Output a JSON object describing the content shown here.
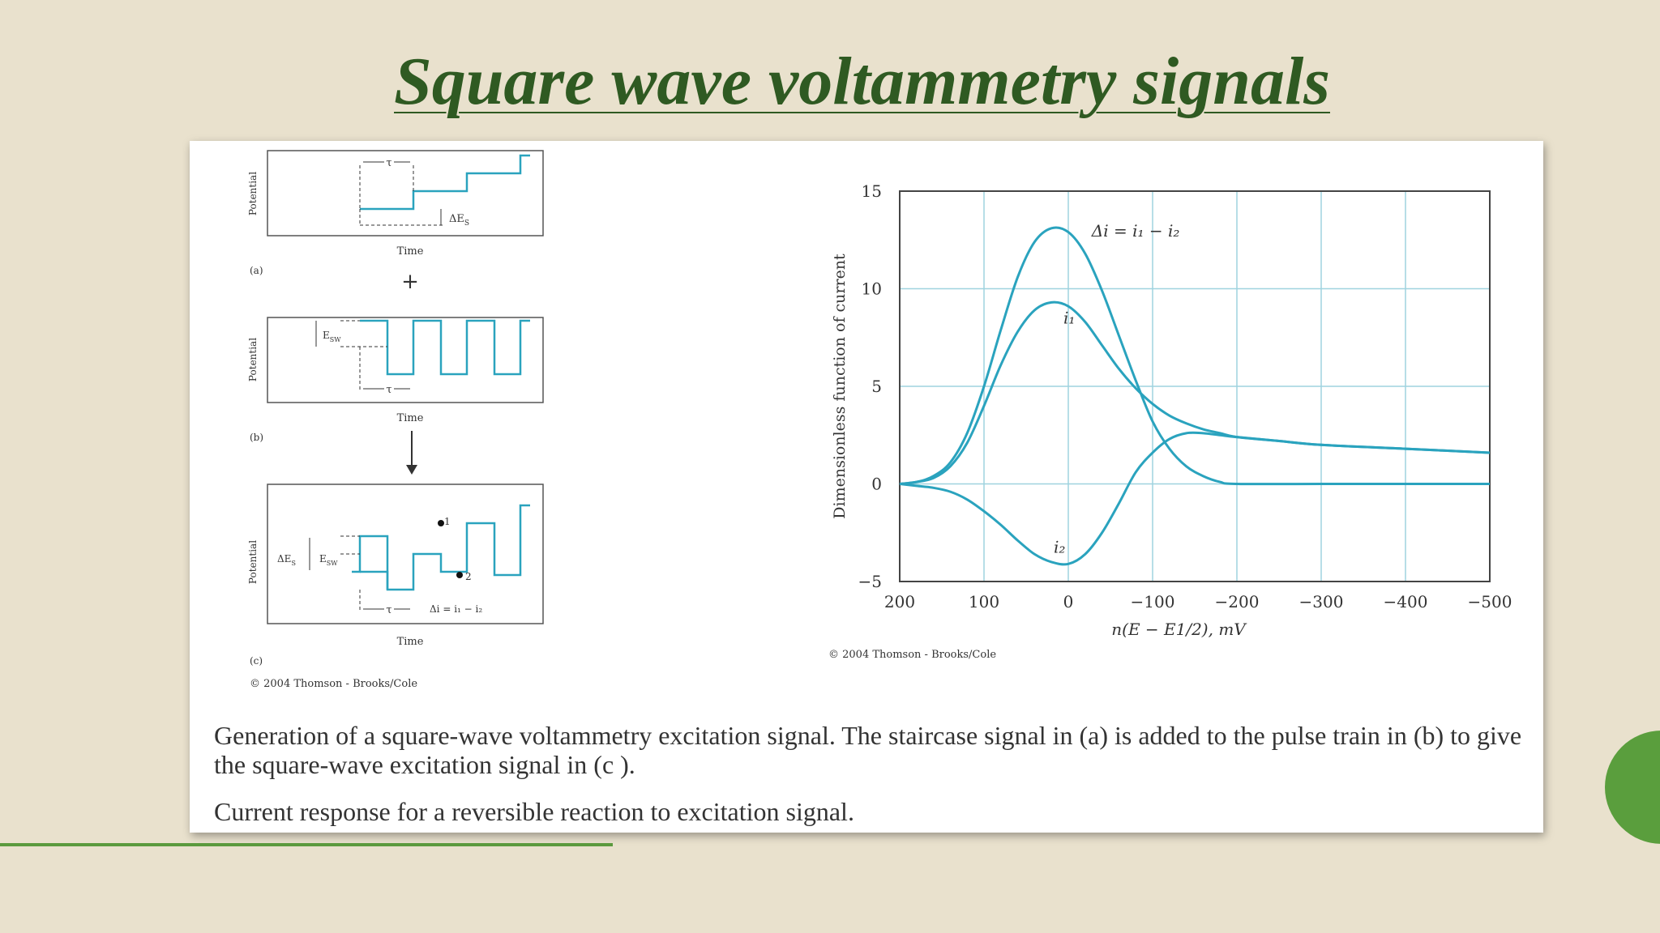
{
  "slide": {
    "title": "Square wave voltammetry signals",
    "caption1": "Generation of a square-wave voltammetry excitation signal. The staircase signal in (a) is added to the pulse train in (b) to give the square-wave excitation signal in (c ).",
    "caption2": "Current response for a reversible reaction to excitation signal."
  },
  "diagram": {
    "ylabel": "Potential",
    "xlabel": "Time",
    "label_a": "(a)",
    "label_b": "(b)",
    "label_c": "(c)",
    "plus": "+",
    "tau": "τ",
    "delta_es": "ΔE",
    "delta_es_sub": "S",
    "esw": "E",
    "esw_sub": "SW",
    "point1": "1",
    "point2": "2",
    "delta_i_eq": "Δi = i₁ − i₂",
    "copyright": "© 2004 Thomson - Brooks/Cole"
  },
  "chart_data": {
    "type": "line",
    "xlabel": "n(E − E1/2), mV",
    "ylabel": "Dimensionless function of current",
    "xlim": [
      200,
      -500
    ],
    "ylim": [
      -5,
      15
    ],
    "xticks": [
      200,
      100,
      0,
      -100,
      -200,
      -300,
      -400,
      -500
    ],
    "xtick_labels": [
      "200",
      "100",
      "0",
      "−100",
      "−200",
      "−300",
      "−400",
      "−500"
    ],
    "yticks": [
      15,
      10,
      5,
      0,
      -5
    ],
    "ytick_labels": [
      "15",
      "10",
      "5",
      "0",
      "−5"
    ],
    "grid": true,
    "color": "#2aa3be",
    "copyright": "© 2004 Thomson - Brooks/Cole",
    "series": [
      {
        "name": "Δi = i1 − i2",
        "label": "Δi = i₁ − i₂",
        "x": [
          200,
          180,
          160,
          140,
          120,
          100,
          80,
          60,
          40,
          20,
          0,
          -20,
          -40,
          -60,
          -80,
          -100,
          -120,
          -140,
          -160,
          -180,
          -200,
          -300,
          -400,
          -500
        ],
        "y": [
          0.0,
          0.1,
          0.4,
          1.1,
          2.6,
          5.0,
          7.9,
          10.6,
          12.4,
          13.1,
          12.9,
          11.8,
          9.9,
          7.6,
          5.3,
          3.2,
          1.8,
          0.9,
          0.4,
          0.1,
          0.0,
          0.0,
          0.0,
          0.0
        ]
      },
      {
        "name": "i1",
        "label": "i₁",
        "x": [
          200,
          180,
          160,
          140,
          120,
          100,
          80,
          60,
          40,
          20,
          0,
          -20,
          -40,
          -60,
          -80,
          -100,
          -120,
          -140,
          -160,
          -180,
          -200,
          -250,
          -300,
          -400,
          -500
        ],
        "y": [
          0.0,
          0.1,
          0.3,
          0.9,
          2.1,
          4.0,
          6.1,
          7.8,
          8.9,
          9.3,
          9.1,
          8.3,
          7.1,
          5.9,
          4.9,
          4.1,
          3.5,
          3.1,
          2.8,
          2.6,
          2.4,
          2.2,
          2.0,
          1.8,
          1.6
        ]
      },
      {
        "name": "i2",
        "label": "i₂",
        "x": [
          200,
          180,
          160,
          140,
          120,
          100,
          80,
          60,
          40,
          20,
          0,
          -20,
          -40,
          -60,
          -80,
          -100,
          -120,
          -140,
          -160,
          -180,
          -200,
          -250,
          -300,
          -400,
          -500
        ],
        "y": [
          0.0,
          -0.1,
          -0.2,
          -0.4,
          -0.8,
          -1.4,
          -2.1,
          -2.9,
          -3.6,
          -4.0,
          -4.1,
          -3.6,
          -2.5,
          -1.0,
          0.6,
          1.6,
          2.3,
          2.6,
          2.6,
          2.5,
          2.4,
          2.2,
          2.0,
          1.8,
          1.6
        ]
      }
    ]
  }
}
